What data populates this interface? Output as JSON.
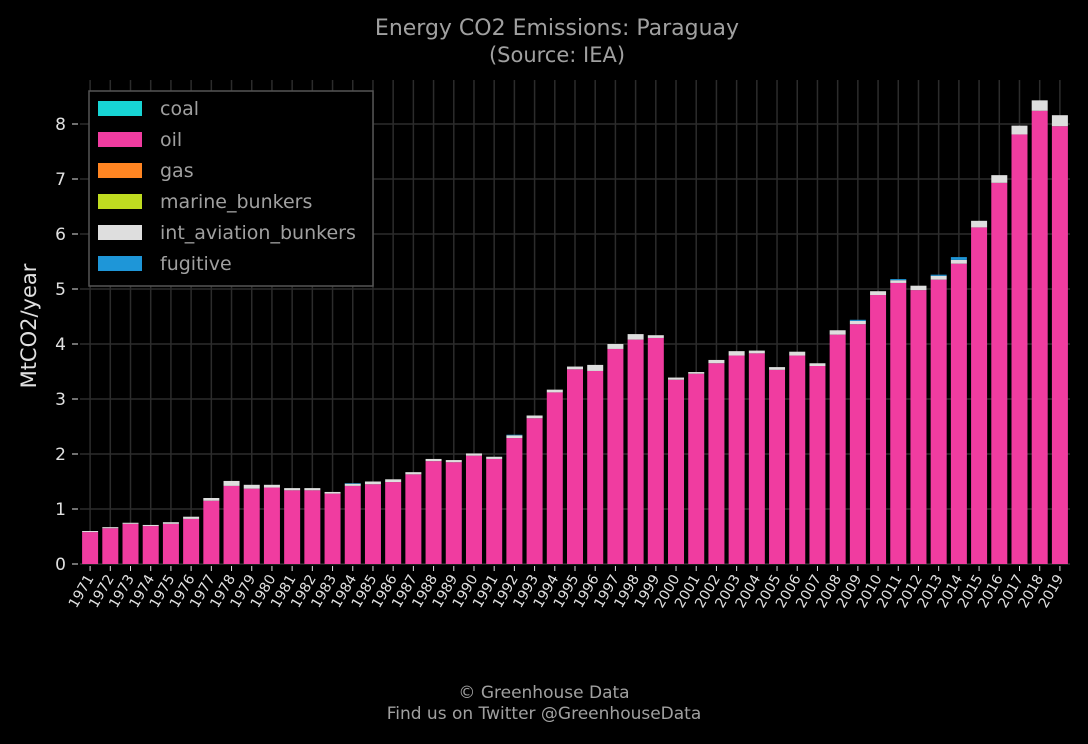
{
  "chart_data": {
    "type": "bar",
    "stacked": true,
    "title": "Energy CO2 Emissions: Paraguay",
    "subtitle": "(Source: IEA)",
    "xlabel": "",
    "ylabel": "MtCO2/year",
    "ylim": [
      0,
      8.8
    ],
    "yticks": [
      0,
      1,
      2,
      3,
      4,
      5,
      6,
      7,
      8
    ],
    "grid": true,
    "legend_position": "top-left",
    "categories": [
      "1971",
      "1972",
      "1973",
      "1974",
      "1975",
      "1976",
      "1977",
      "1978",
      "1979",
      "1980",
      "1981",
      "1982",
      "1983",
      "1984",
      "1985",
      "1986",
      "1987",
      "1988",
      "1989",
      "1990",
      "1991",
      "1992",
      "1993",
      "1994",
      "1995",
      "1996",
      "1997",
      "1998",
      "1999",
      "2000",
      "2001",
      "2002",
      "2003",
      "2004",
      "2005",
      "2006",
      "2007",
      "2008",
      "2009",
      "2010",
      "2011",
      "2012",
      "2013",
      "2014",
      "2015",
      "2016",
      "2017",
      "2018",
      "2019"
    ],
    "series": [
      {
        "name": "coal",
        "color": "#17d4d4",
        "values": [
          0,
          0,
          0,
          0,
          0,
          0,
          0,
          0,
          0,
          0,
          0,
          0,
          0,
          0,
          0,
          0,
          0,
          0,
          0,
          0,
          0,
          0,
          0,
          0,
          0,
          0,
          0,
          0,
          0,
          0,
          0,
          0,
          0,
          0,
          0,
          0,
          0,
          0,
          0,
          0,
          0,
          0,
          0,
          0,
          0,
          0,
          0,
          0,
          0
        ]
      },
      {
        "name": "oil",
        "color": "#f03ca0",
        "values": [
          0.58,
          0.65,
          0.73,
          0.69,
          0.73,
          0.82,
          1.15,
          1.42,
          1.37,
          1.39,
          1.34,
          1.34,
          1.28,
          1.42,
          1.45,
          1.49,
          1.63,
          1.87,
          1.85,
          1.97,
          1.91,
          2.29,
          2.65,
          3.12,
          3.54,
          3.51,
          3.91,
          4.08,
          4.11,
          3.35,
          3.46,
          3.65,
          3.79,
          3.83,
          3.53,
          3.79,
          3.6,
          4.17,
          4.36,
          4.89,
          5.11,
          4.98,
          5.17,
          5.46,
          6.12,
          6.93,
          7.81,
          8.24,
          7.96
        ]
      },
      {
        "name": "gas",
        "color": "#ff8522",
        "values": [
          0,
          0,
          0,
          0,
          0,
          0,
          0,
          0,
          0,
          0,
          0,
          0,
          0,
          0,
          0,
          0,
          0,
          0,
          0,
          0,
          0,
          0,
          0,
          0,
          0,
          0,
          0,
          0,
          0,
          0,
          0,
          0,
          0,
          0,
          0,
          0,
          0,
          0,
          0,
          0,
          0,
          0,
          0,
          0,
          0,
          0,
          0,
          0,
          0
        ]
      },
      {
        "name": "marine_bunkers",
        "color": "#bfdc20",
        "values": [
          0,
          0,
          0,
          0,
          0,
          0,
          0,
          0,
          0,
          0,
          0,
          0,
          0,
          0,
          0,
          0,
          0,
          0,
          0,
          0,
          0,
          0,
          0,
          0,
          0,
          0,
          0,
          0,
          0,
          0,
          0,
          0,
          0,
          0,
          0,
          0,
          0,
          0,
          0,
          0,
          0,
          0,
          0,
          0,
          0,
          0,
          0,
          0,
          0
        ]
      },
      {
        "name": "int_aviation_bunkers",
        "color": "#dedede",
        "values": [
          0.02,
          0.02,
          0.02,
          0.02,
          0.03,
          0.04,
          0.05,
          0.09,
          0.07,
          0.05,
          0.04,
          0.04,
          0.03,
          0.04,
          0.05,
          0.05,
          0.04,
          0.04,
          0.04,
          0.04,
          0.04,
          0.05,
          0.05,
          0.05,
          0.05,
          0.11,
          0.09,
          0.1,
          0.05,
          0.04,
          0.03,
          0.06,
          0.08,
          0.05,
          0.05,
          0.07,
          0.05,
          0.08,
          0.06,
          0.07,
          0.05,
          0.08,
          0.07,
          0.07,
          0.12,
          0.14,
          0.16,
          0.19,
          0.2
        ]
      },
      {
        "name": "fugitive",
        "color": "#1e96d8",
        "values": [
          0,
          0,
          0,
          0,
          0,
          0,
          0,
          0,
          0,
          0,
          0,
          0,
          0,
          0.01,
          0,
          0,
          0,
          0,
          0,
          0,
          0,
          0.01,
          0,
          0,
          0,
          0,
          0,
          0,
          0,
          0,
          0,
          0,
          0,
          0,
          0,
          0,
          0,
          0,
          0.02,
          0,
          0.02,
          0,
          0.02,
          0.05,
          0,
          0,
          0,
          0,
          0
        ]
      }
    ]
  },
  "footer": {
    "line1": "© Greenhouse Data",
    "line2": "Find us on Twitter @GreenhouseData"
  },
  "colors": {
    "background": "#000000",
    "grid": "#2c2c2c",
    "text": "#a0a0a0",
    "axis_text": "#e0e0e0"
  }
}
